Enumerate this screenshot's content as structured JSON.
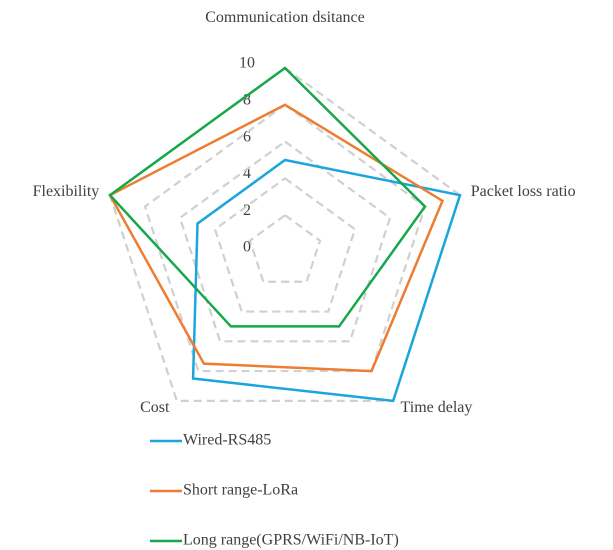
{
  "chart_data": {
    "type": "radar",
    "categories": [
      "Communication dsitance",
      "Packet loss ratio",
      "Time delay",
      "Cost",
      "Flexibility"
    ],
    "series": [
      {
        "name": "Wired-RS485",
        "color": "#1aa6dc",
        "values": [
          5,
          10,
          10,
          8.5,
          5
        ]
      },
      {
        "name": "Short range-LoRa",
        "color": "#ed7d31",
        "values": [
          8,
          9,
          8,
          7.5,
          10
        ]
      },
      {
        "name": "Long range(GPRS/WiFi/NB-IoT)",
        "color": "#17a84a",
        "values": [
          10,
          8,
          5,
          5,
          10
        ]
      }
    ],
    "ylim": [
      0,
      10
    ],
    "yticks": [
      0,
      2,
      4,
      6,
      8,
      10
    ],
    "grid": true
  }
}
